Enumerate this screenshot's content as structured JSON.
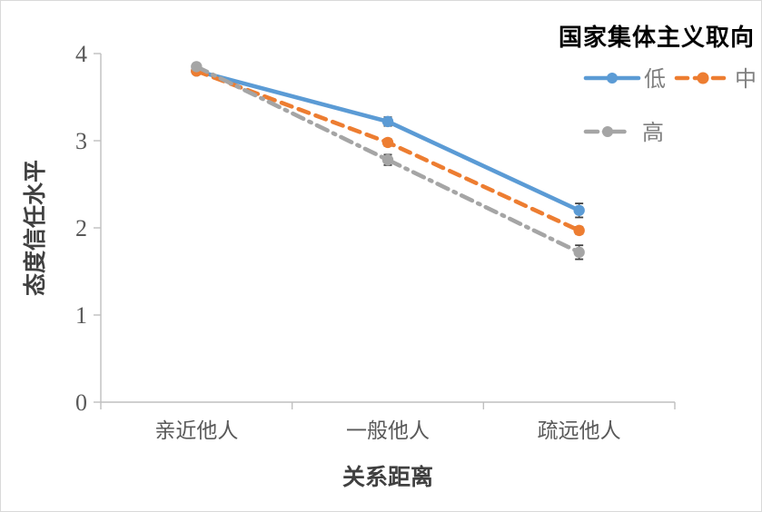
{
  "frame": {
    "border_color": "#D9D9D9",
    "background": "#FFFFFF"
  },
  "chart_data": {
    "type": "line",
    "title": "",
    "legend_title": "国家集体主义取向",
    "legend_position": "top-right",
    "xlabel": "关系距离",
    "ylabel": "态度信任水平",
    "categories": [
      "亲近他人",
      "一般他人",
      "疏远他人"
    ],
    "ylim": [
      0,
      4
    ],
    "yticks": [
      0,
      1,
      2,
      3,
      4
    ],
    "grid": false,
    "series": [
      {
        "name": "低",
        "color": "#5B9BD5",
        "line_style": "solid",
        "marker": "circle",
        "values": [
          3.8,
          3.22,
          2.2
        ],
        "errors": [
          0.03,
          0.05,
          0.08
        ]
      },
      {
        "name": "中",
        "color": "#ED7D31",
        "line_style": "dashed",
        "marker": "circle",
        "values": [
          3.8,
          2.98,
          1.97
        ],
        "errors": [
          0.03,
          0.04,
          0.04
        ]
      },
      {
        "name": "高",
        "color": "#A5A5A5",
        "line_style": "dash-dot",
        "marker": "circle",
        "values": [
          3.85,
          2.78,
          1.72
        ],
        "errors": [
          0.03,
          0.06,
          0.08
        ]
      }
    ],
    "styles": {
      "axis_color": "#BFBFBF",
      "tick_label_color": "#595959",
      "axis_title_color": "#404040",
      "legend_title_color": "#000000",
      "legend_label_color": "#7F7F7F",
      "error_bar_color": "#404040"
    }
  }
}
